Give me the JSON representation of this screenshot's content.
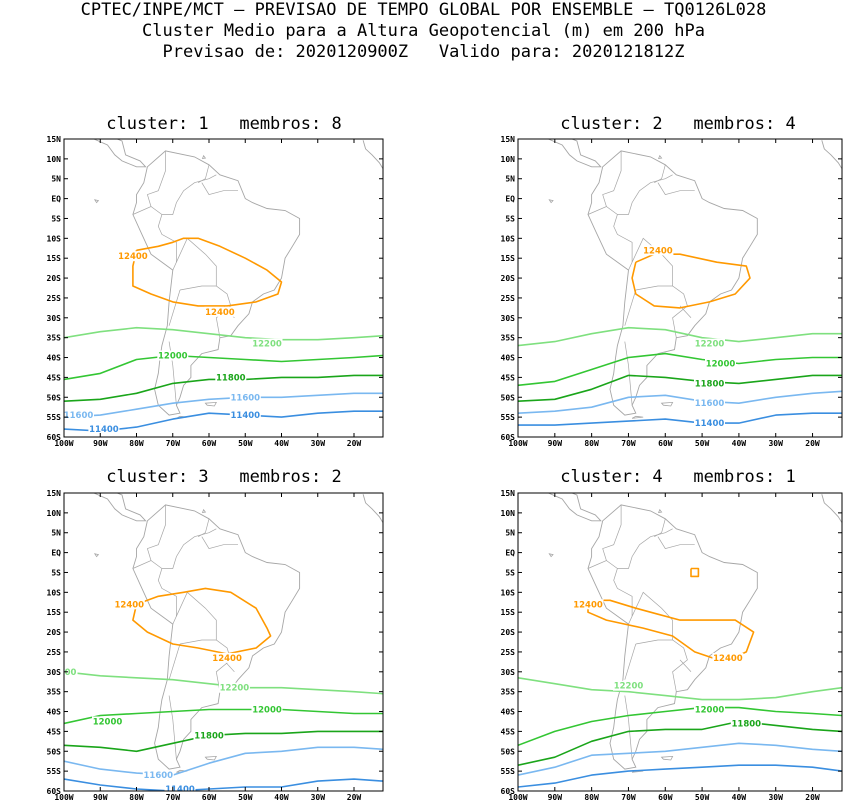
{
  "header": {
    "line1": "CPTEC/INPE/MCT — PREVISAO DE TEMPO GLOBAL POR ENSEMBLE — TQ0126L028",
    "line2": "Cluster Medio para a Altura Geopotencial (m) em 200 hPa",
    "line3": "Previsao de: 2020120900Z   Valido para: 2020121812Z"
  },
  "lat_ticks": [
    "15N",
    "10N",
    "5N",
    "EQ",
    "5S",
    "10S",
    "15S",
    "20S",
    "25S",
    "30S",
    "35S",
    "40S",
    "45S",
    "50S",
    "55S",
    "60S"
  ],
  "lon_ticks": [
    "100W",
    "90W",
    "80W",
    "70W",
    "60W",
    "50W",
    "40W",
    "30W",
    "20W"
  ],
  "colors": {
    "c12400": "#ff9900",
    "c12200": "#7fe07f",
    "c12000": "#33c633",
    "c11800": "#1aa51a",
    "c11600": "#7ab8f0",
    "c11400": "#3a8ee0",
    "coast": "#a6a6a6"
  },
  "panels": [
    {
      "title": "cluster: 1   membros: 8",
      "labels": [
        {
          "text": "12400",
          "c": "c12400",
          "lon": -81,
          "lat": -14.5
        },
        {
          "text": "12400",
          "c": "c12400",
          "lon": -57,
          "lat": -28.5
        },
        {
          "text": "12200",
          "c": "c12200",
          "lon": -44,
          "lat": -36.5
        },
        {
          "text": "12000",
          "c": "c12000",
          "lon": -70,
          "lat": -39.5
        },
        {
          "text": "11800",
          "c": "c11800",
          "lon": -54,
          "lat": -45
        },
        {
          "text": "11600",
          "c": "c11600",
          "lon": -50,
          "lat": -50
        },
        {
          "text": "11600",
          "c": "c11600",
          "lon": -96,
          "lat": -54.5
        },
        {
          "text": "11400",
          "c": "c11400",
          "lon": -50,
          "lat": -54.5
        },
        {
          "text": "11400",
          "c": "c11400",
          "lon": -89,
          "lat": -58
        }
      ]
    },
    {
      "title": "cluster: 2   membros: 4",
      "labels": [
        {
          "text": "12400",
          "c": "c12400",
          "lon": -62,
          "lat": -13
        },
        {
          "text": "12200",
          "c": "c12200",
          "lon": -48,
          "lat": -36.5
        },
        {
          "text": "12000",
          "c": "c12000",
          "lon": -45,
          "lat": -41.5
        },
        {
          "text": "11800",
          "c": "c11800",
          "lon": -48,
          "lat": -46.5
        },
        {
          "text": "11600",
          "c": "c11600",
          "lon": -48,
          "lat": -51.5
        },
        {
          "text": "11400",
          "c": "c11400",
          "lon": -48,
          "lat": -56.5
        }
      ]
    },
    {
      "title": "cluster: 3   membros: 2",
      "labels": [
        {
          "text": "12400",
          "c": "c12400",
          "lon": -82,
          "lat": -13
        },
        {
          "text": "12400",
          "c": "c12400",
          "lon": -55,
          "lat": -26.5
        },
        {
          "text": "200",
          "c": "c12200",
          "lon": -99,
          "lat": -30
        },
        {
          "text": "12200",
          "c": "c12200",
          "lon": -53,
          "lat": -34
        },
        {
          "text": "12000",
          "c": "c12000",
          "lon": -88,
          "lat": -42.5
        },
        {
          "text": "12000",
          "c": "c12000",
          "lon": -44,
          "lat": -39.5
        },
        {
          "text": "11800",
          "c": "c11800",
          "lon": -60,
          "lat": -46
        },
        {
          "text": "11600",
          "c": "c11600",
          "lon": -74,
          "lat": -56
        },
        {
          "text": "11400",
          "c": "c11400",
          "lon": -68,
          "lat": -59.5
        }
      ]
    },
    {
      "title": "cluster: 4   membros: 1",
      "labels": [
        {
          "text": "12400",
          "c": "c12400",
          "lon": -81,
          "lat": -13
        },
        {
          "text": "12400",
          "c": "c12400",
          "lon": -43,
          "lat": -26.5
        },
        {
          "text": "12200",
          "c": "c12200",
          "lon": -70,
          "lat": -33.5
        },
        {
          "text": "12000",
          "c": "c12000",
          "lon": -48,
          "lat": -39.5
        },
        {
          "text": "11800",
          "c": "c11800",
          "lon": -38,
          "lat": -43
        }
      ]
    }
  ]
}
